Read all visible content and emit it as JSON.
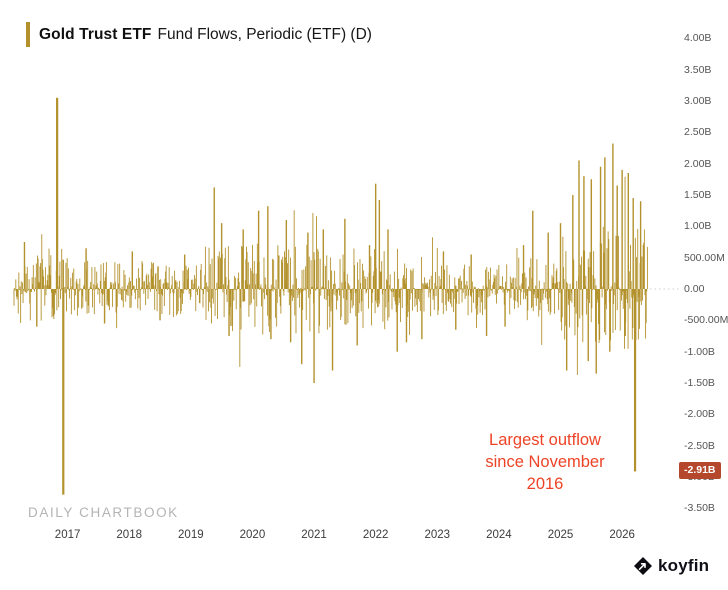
{
  "header": {
    "title_bold": "Gold Trust ETF",
    "title_rest": "Fund Flows, Periodic (ETF) (D)"
  },
  "watermark": "DAILY CHARTBOOK",
  "branding": {
    "logo_text": "koyfin",
    "logo_icon": "koyfin-diamond-icon"
  },
  "annotation": {
    "text": "Largest outflow since November 2016",
    "color": "#ee4326"
  },
  "colors": {
    "bar": "#b3922d",
    "accent": "#b3922d",
    "annotation_red": "#ee4326",
    "badge_bg": "#b5472c",
    "axis_text": "#555555",
    "watermark_gray": "#b4b4b4"
  },
  "chart_data": {
    "type": "bar",
    "title": "Gold Trust ETF Fund Flows, Periodic (ETF) (D)",
    "frequency": "daily",
    "unit": "USD (B = billions, M = millions)",
    "grid": false,
    "y_axis_side": "right",
    "x_ticks": [
      "2017",
      "2018",
      "2019",
      "2020",
      "2021",
      "2022",
      "2023",
      "2024",
      "2025",
      "2026"
    ],
    "x_domain": [
      2016.13,
      2026.42
    ],
    "ylim": [
      -3.75,
      4.25
    ],
    "y_ticks": [
      [
        "4.00B",
        4.0
      ],
      [
        "3.50B",
        3.5
      ],
      [
        "3.00B",
        3.0
      ],
      [
        "2.50B",
        2.5
      ],
      [
        "2.00B",
        2.0
      ],
      [
        "1.50B",
        1.5
      ],
      [
        "1.00B",
        1.0
      ],
      [
        "500.00M",
        0.5
      ],
      [
        "0.00",
        0.0
      ],
      [
        "-500.00M",
        -0.5
      ],
      [
        "-1.00B",
        -1.0
      ],
      [
        "-1.50B",
        -1.5
      ],
      [
        "-2.00B",
        -2.0
      ],
      [
        "-2.50B",
        -2.5
      ],
      [
        "-3.00B",
        -3.0
      ],
      [
        "-3.50B",
        -3.5
      ]
    ],
    "last_value": {
      "label": "-2.91B",
      "value": -2.91,
      "time": 2026.21
    },
    "notable_bars": [
      [
        2016.3,
        0.75
      ],
      [
        2016.5,
        -0.6
      ],
      [
        2016.83,
        3.05
      ],
      [
        2016.93,
        -3.28
      ],
      [
        2017.3,
        0.65
      ],
      [
        2017.6,
        -0.55
      ],
      [
        2018.05,
        0.6
      ],
      [
        2018.5,
        -0.5
      ],
      [
        2018.9,
        0.55
      ],
      [
        2019.38,
        1.62
      ],
      [
        2019.5,
        1.05
      ],
      [
        2019.62,
        -0.75
      ],
      [
        2019.85,
        0.95
      ],
      [
        2020.1,
        1.25
      ],
      [
        2020.25,
        1.32
      ],
      [
        2020.3,
        -0.8
      ],
      [
        2020.55,
        1.1
      ],
      [
        2020.62,
        -0.85
      ],
      [
        2020.8,
        -1.2
      ],
      [
        2020.9,
        0.9
      ],
      [
        2021.0,
        -1.5
      ],
      [
        2021.15,
        0.95
      ],
      [
        2021.3,
        -1.3
      ],
      [
        2021.5,
        1.12
      ],
      [
        2021.7,
        -0.9
      ],
      [
        2021.9,
        0.7
      ],
      [
        2022.0,
        1.68
      ],
      [
        2022.06,
        1.42
      ],
      [
        2022.2,
        0.95
      ],
      [
        2022.35,
        -1.0
      ],
      [
        2022.5,
        -0.85
      ],
      [
        2022.75,
        -0.8
      ],
      [
        2023.1,
        0.6
      ],
      [
        2023.3,
        -0.65
      ],
      [
        2023.55,
        0.55
      ],
      [
        2023.8,
        -0.75
      ],
      [
        2024.1,
        -0.6
      ],
      [
        2024.4,
        0.7
      ],
      [
        2024.55,
        1.25
      ],
      [
        2024.8,
        0.9
      ],
      [
        2025.0,
        1.05
      ],
      [
        2025.1,
        -1.3
      ],
      [
        2025.2,
        1.5
      ],
      [
        2025.3,
        2.05
      ],
      [
        2025.38,
        1.8
      ],
      [
        2025.45,
        -1.15
      ],
      [
        2025.5,
        1.75
      ],
      [
        2025.58,
        -1.35
      ],
      [
        2025.65,
        1.95
      ],
      [
        2025.72,
        2.1
      ],
      [
        2025.8,
        -1.0
      ],
      [
        2025.85,
        2.32
      ],
      [
        2025.92,
        1.65
      ],
      [
        2026.0,
        1.9
      ],
      [
        2026.05,
        -0.75
      ],
      [
        2026.1,
        1.85
      ],
      [
        2026.18,
        1.45
      ],
      [
        2026.21,
        -2.91
      ],
      [
        2026.3,
        1.4
      ]
    ],
    "volatility_profile": [
      [
        2016.13,
        2017.1,
        0.55
      ],
      [
        2017.1,
        2019.2,
        0.45
      ],
      [
        2019.2,
        2020.0,
        0.7
      ],
      [
        2020.0,
        2021.1,
        0.75
      ],
      [
        2021.1,
        2022.4,
        0.65
      ],
      [
        2022.4,
        2023.0,
        0.55
      ],
      [
        2023.0,
        2024.3,
        0.42
      ],
      [
        2024.3,
        2025.0,
        0.5
      ],
      [
        2025.0,
        2025.6,
        0.85
      ],
      [
        2025.6,
        2026.42,
        1.0
      ]
    ]
  }
}
